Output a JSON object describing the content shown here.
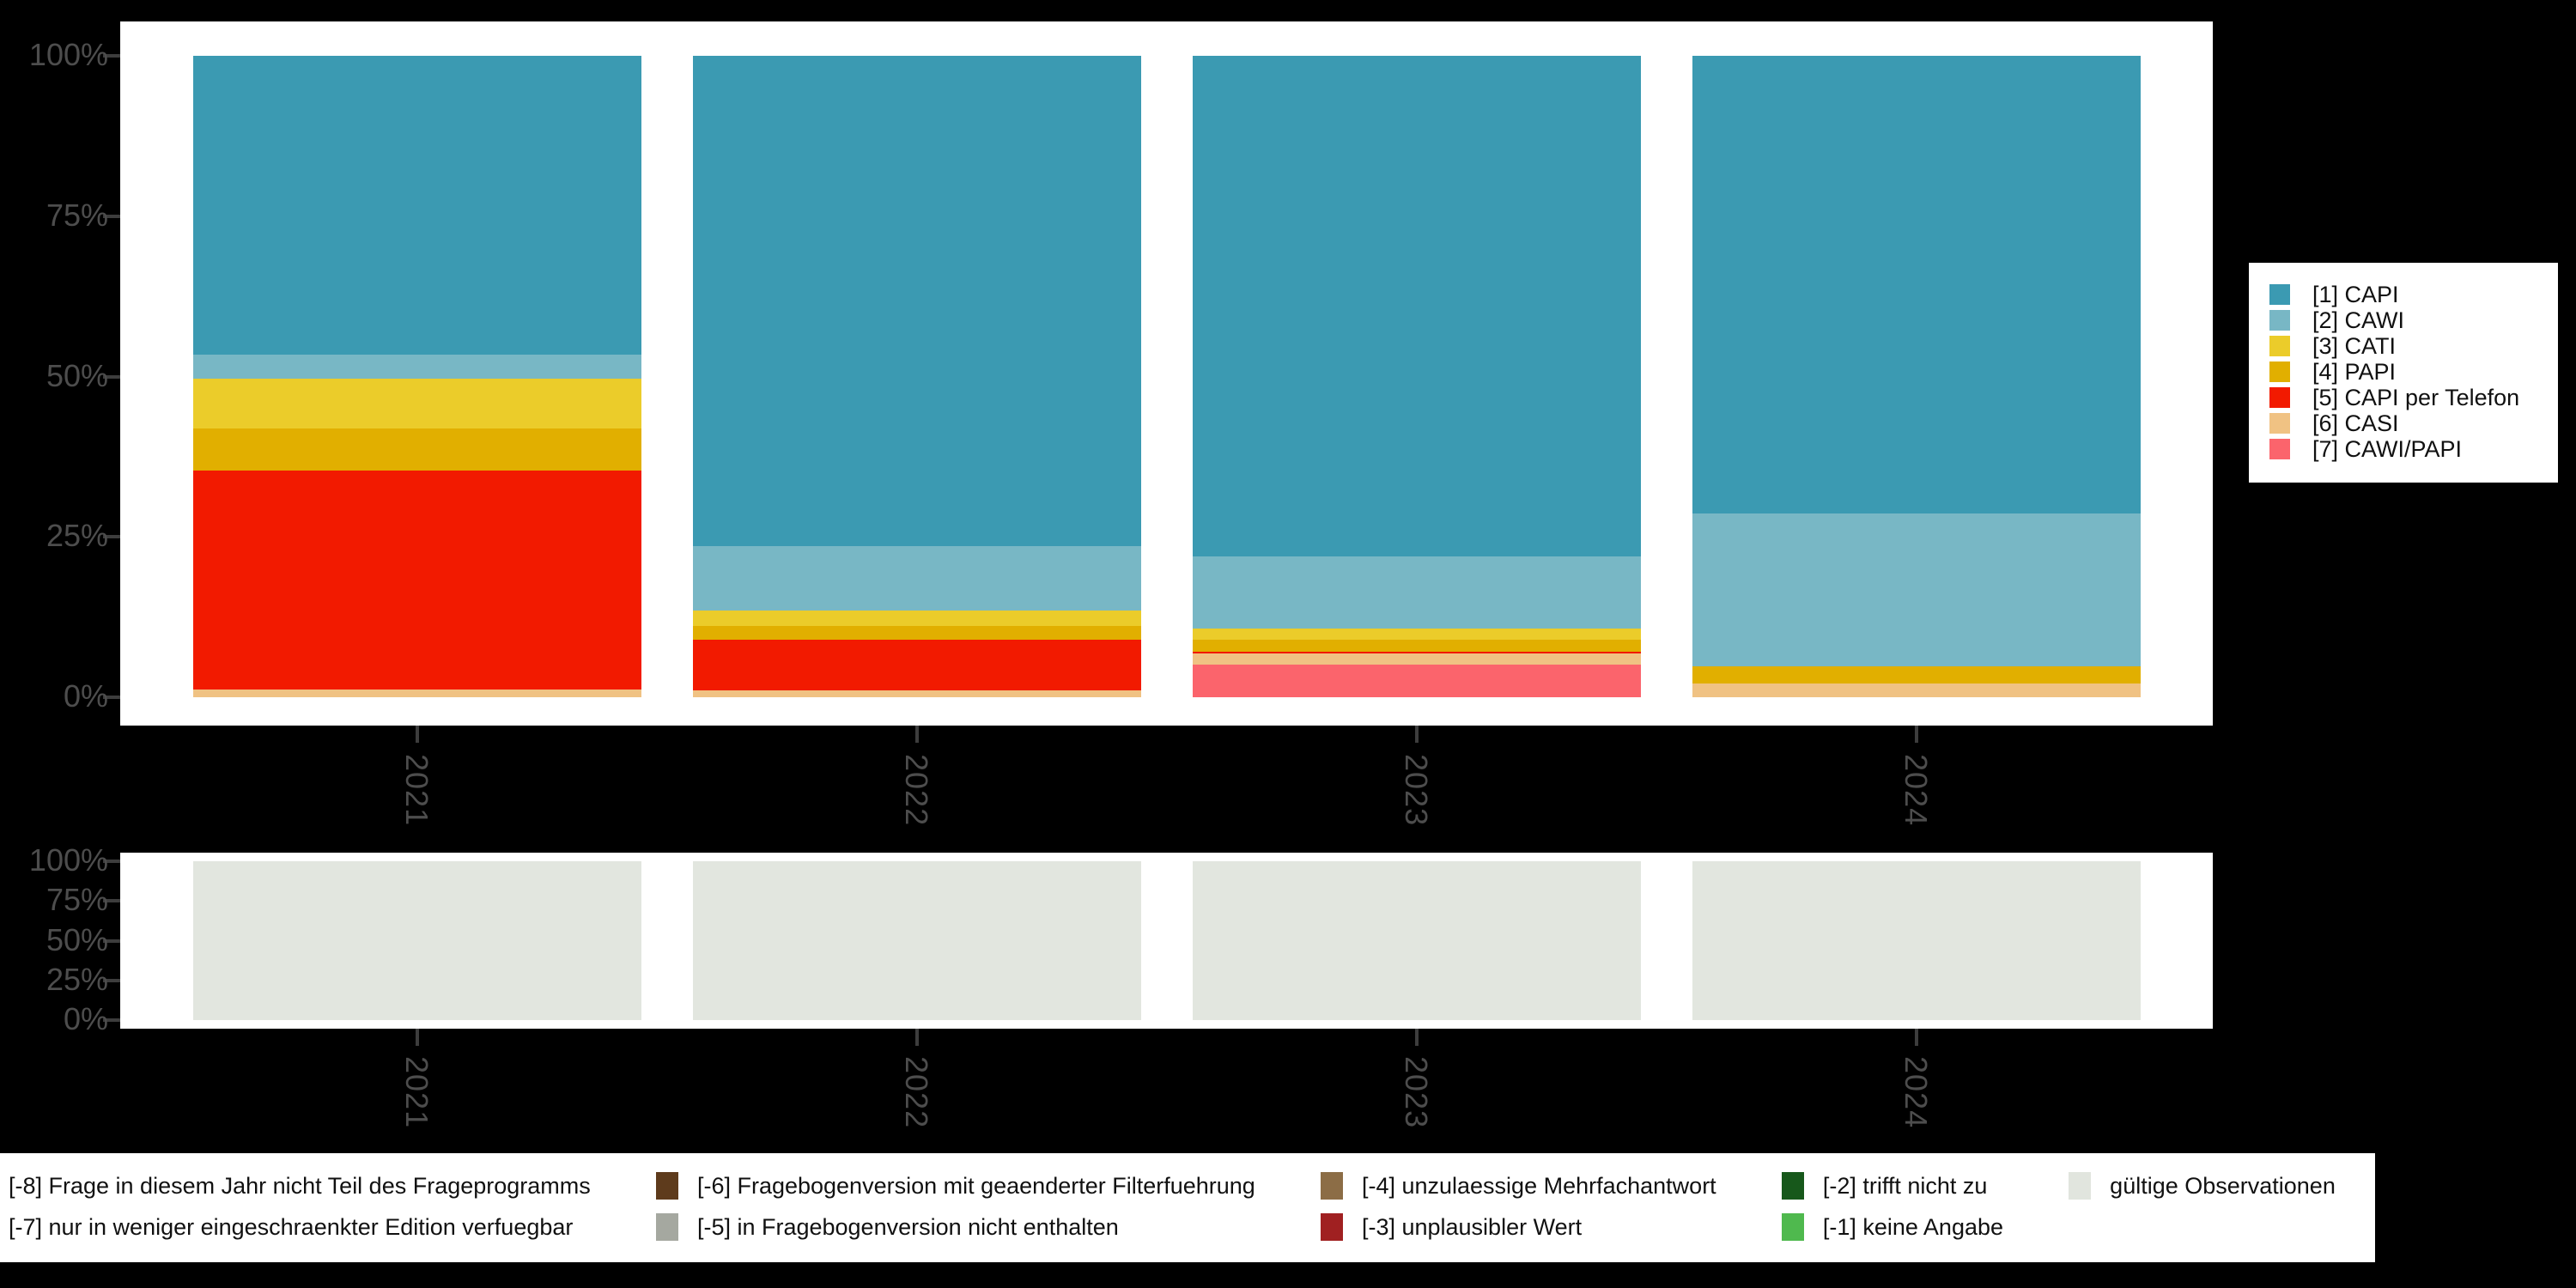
{
  "figure": {
    "background": "#000000",
    "panel_color": "#ffffff",
    "axis_text_color": "#4d4d4d",
    "tick_color": "#3d3d3d"
  },
  "chart_data": [
    {
      "id": "modes",
      "type": "bar",
      "stacked": true,
      "title": "",
      "xlabel": "",
      "ylabel": "",
      "categories": [
        "2021",
        "2022",
        "2023",
        "2024"
      ],
      "yticks": [
        "0%",
        "25%",
        "50%",
        "75%",
        "100%"
      ],
      "ylim": [
        0,
        100
      ],
      "grid": false,
      "legend_position": "right",
      "series": [
        {
          "name": "[1] CAPI",
          "color": "#3B9AB2",
          "values": [
            46.6,
            76.4,
            78.0,
            71.4
          ]
        },
        {
          "name": "[2] CAWI",
          "color": "#78B7C5",
          "values": [
            3.8,
            10.1,
            11.3,
            23.8
          ]
        },
        {
          "name": "[3] CATI",
          "color": "#EBCC2A",
          "values": [
            7.7,
            2.4,
            1.7,
            0
          ]
        },
        {
          "name": "[4] PAPI",
          "color": "#E1AF00",
          "values": [
            6.6,
            2.1,
            1.9,
            2.7
          ]
        },
        {
          "name": "[5] CAPI per Telefon",
          "color": "#F21A00",
          "values": [
            34.1,
            7.9,
            0.3,
            0
          ]
        },
        {
          "name": "[6] CASI",
          "color": "#F0C283",
          "values": [
            1.2,
            1.1,
            1.7,
            2.1
          ]
        },
        {
          "name": "[7] CAWI/PAPI",
          "color": "#FB646C",
          "values": [
            0,
            0,
            5.1,
            0
          ]
        }
      ]
    },
    {
      "id": "valid",
      "type": "bar",
      "stacked": true,
      "title": "",
      "xlabel": "",
      "ylabel": "",
      "categories": [
        "2021",
        "2022",
        "2023",
        "2024"
      ],
      "yticks": [
        "0%",
        "25%",
        "50%",
        "75%",
        "100%"
      ],
      "ylim": [
        0,
        100
      ],
      "grid": false,
      "series": [
        {
          "name": "gültige Observationen",
          "color": "#E2E6DF",
          "values": [
            100,
            100,
            100,
            100
          ]
        }
      ]
    }
  ],
  "mode_legend": {
    "items": [
      {
        "label": "[1] CAPI",
        "color": "#3B9AB2"
      },
      {
        "label": "[2] CAWI",
        "color": "#78B7C5"
      },
      {
        "label": "[3] CATI",
        "color": "#EBCC2A"
      },
      {
        "label": "[4] PAPI",
        "color": "#E1AF00"
      },
      {
        "label": "[5] CAPI per Telefon",
        "color": "#F21A00"
      },
      {
        "label": "[6] CASI",
        "color": "#F0C283"
      },
      {
        "label": "[7] CAWI/PAPI",
        "color": "#FB646C"
      }
    ]
  },
  "missing_legend": {
    "rows": [
      [
        {
          "label": "[-8] Frage in diesem Jahr nicht Teil des Frageprogramms",
          "color": null
        },
        {
          "label": "[-6] Fragebogenversion mit geaenderter Filterfuehrung",
          "color": "#5E3B1C"
        },
        {
          "label": "[-4] unzulaessige Mehrfachantwort",
          "color": "#8C6D46"
        },
        {
          "label": "[-2] trifft nicht zu",
          "color": "#17581B"
        },
        {
          "label": "gültige Observationen",
          "color": "#E1E5DE"
        }
      ],
      [
        {
          "label": "[-7] nur in weniger eingeschraenkter Edition verfuegbar",
          "color": null
        },
        {
          "label": "[-5] in Fragebogenversion nicht enthalten",
          "color": "#A5A8A0"
        },
        {
          "label": "[-3] unplausibler Wert",
          "color": "#A02021"
        },
        {
          "label": "[-1] keine Angabe",
          "color": "#4FB94E"
        },
        {
          "label": "",
          "color": null
        }
      ]
    ]
  }
}
